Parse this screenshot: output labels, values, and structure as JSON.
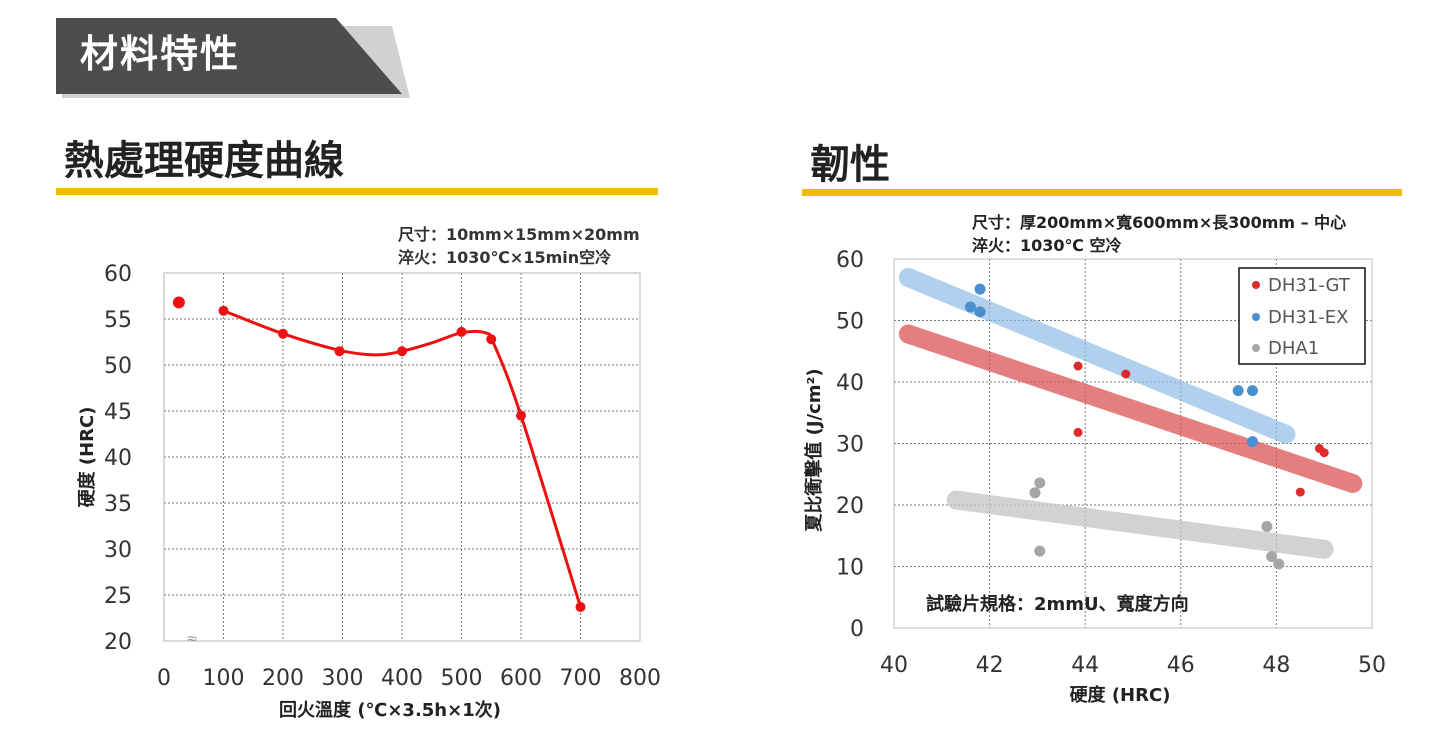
{
  "banner": {
    "title": "材料特性"
  },
  "sections": {
    "left_title": "熱處理硬度曲線",
    "right_title": "韌性"
  },
  "colors": {
    "accent": "#f2bb05",
    "banner": "#4d4d4d",
    "curve": "#ee1111",
    "gt": "#dd2a2a",
    "ex": "#4a8fd0",
    "dha1": "#a6a6a6"
  },
  "chart_data": [
    {
      "type": "line",
      "notes": [
        "尺寸：10mm×15mm×20mm",
        "淬火：1030℃×15min空冷"
      ],
      "xlabel": "回火溫度 (℃×3.5h×1次)",
      "ylabel": "硬度 (HRC)",
      "xlim": [
        0,
        800
      ],
      "ylim": [
        20,
        60
      ],
      "xticks": [
        "0",
        "100",
        "200",
        "300",
        "400",
        "500",
        "600",
        "700",
        "800"
      ],
      "yticks": [
        "20",
        "25",
        "30",
        "35",
        "40",
        "45",
        "50",
        "55",
        "60"
      ],
      "axis_break_mark": "≈",
      "grid": true,
      "x": [
        25,
        100,
        200,
        295,
        400,
        500,
        550,
        600,
        700
      ],
      "values": [
        56.8,
        55.9,
        53.4,
        51.5,
        51.5,
        53.6,
        52.8,
        44.5,
        23.7
      ],
      "curve_points": [
        [
          100,
          55.9
        ],
        [
          200,
          53.4
        ],
        [
          295,
          51.6
        ],
        [
          355,
          51.1
        ],
        [
          400,
          51.5
        ],
        [
          450,
          52.4
        ],
        [
          500,
          53.5
        ],
        [
          540,
          53.5
        ],
        [
          555,
          52.2
        ],
        [
          600,
          44.5
        ],
        [
          700,
          23.7
        ]
      ]
    },
    {
      "type": "scatter",
      "notes": [
        "尺寸：厚200mm×寬600mm×長300mm – 中心",
        "淬火：1030℃ 空冷"
      ],
      "annotation": "試驗片規格：2mmU、寬度方向",
      "xlabel": "硬度 (HRC)",
      "ylabel": "夏比衝擊值 (J/cm²)",
      "xlim": [
        40,
        50
      ],
      "ylim": [
        0,
        60
      ],
      "xticks": [
        "40",
        "42",
        "44",
        "46",
        "48",
        "50"
      ],
      "yticks": [
        "0",
        "10",
        "20",
        "30",
        "40",
        "50",
        "60"
      ],
      "grid": true,
      "legend_position": "top-right",
      "series": [
        {
          "name": "DH31-GT",
          "color": "#dd2a2a",
          "points": [
            [
              43.85,
              42.6
            ],
            [
              43.85,
              31.8
            ],
            [
              44.85,
              41.3
            ],
            [
              47.5,
              30.4
            ],
            [
              48.5,
              22.1
            ],
            [
              48.9,
              29.2
            ],
            [
              49.0,
              28.5
            ]
          ],
          "trend": [
            [
              40.3,
              47.8
            ],
            [
              49.6,
              23.5
            ]
          ]
        },
        {
          "name": "DH31-EX",
          "color": "#4a8fd0",
          "points": [
            [
              41.6,
              52.2
            ],
            [
              41.8,
              55.1
            ],
            [
              41.8,
              51.4
            ],
            [
              47.2,
              38.6
            ],
            [
              47.5,
              38.6
            ],
            [
              47.5,
              30.3
            ]
          ],
          "trend": [
            [
              40.3,
              57.0
            ],
            [
              48.2,
              31.5
            ]
          ]
        },
        {
          "name": "DHA1",
          "color": "#a6a6a6",
          "points": [
            [
              42.95,
              22.0
            ],
            [
              43.05,
              23.6
            ],
            [
              43.05,
              12.5
            ],
            [
              47.8,
              16.5
            ],
            [
              47.9,
              11.6
            ],
            [
              48.05,
              10.4
            ]
          ],
          "trend": [
            [
              41.3,
              20.8
            ],
            [
              49.0,
              12.8
            ]
          ]
        }
      ]
    }
  ]
}
